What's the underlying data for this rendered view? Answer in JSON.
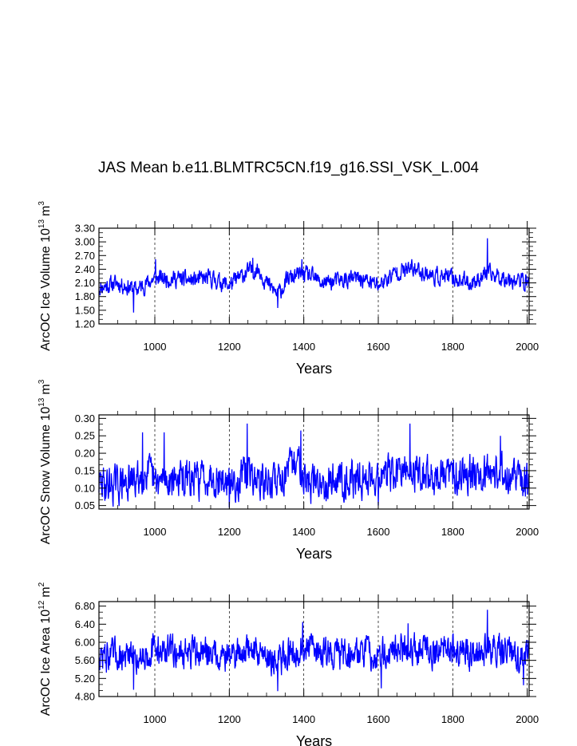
{
  "title": "JAS Mean b.e11.BLMTRC5CN.f19_g16.SSI_VSK_L.004",
  "chart_data": [
    {
      "type": "line",
      "name": "ice-volume",
      "ylabel": {
        "main": "ArcOC Ice Volume 10",
        "exp": "13",
        "unit": "m",
        "unit_exp": "3"
      },
      "xlabel": "Years",
      "xlim": [
        850,
        2005
      ],
      "ylim": [
        1.2,
        3.3
      ],
      "xticks": [
        1000,
        1200,
        1400,
        1600,
        1800,
        2000
      ],
      "yticks": [
        1.2,
        1.5,
        1.8,
        2.1,
        2.4,
        2.7,
        3.0,
        3.3
      ],
      "ytick_labels": [
        "1.20",
        "1.50",
        "1.80",
        "2.10",
        "2.40",
        "2.70",
        "3.00",
        "3.30"
      ],
      "series": [
        {
          "name": "ice volume",
          "color": "#0000ff",
          "base": [
            [
              850,
              2.0
            ],
            [
              900,
              2.1
            ],
            [
              950,
              1.95
            ],
            [
              1000,
              2.2
            ],
            [
              1050,
              2.2
            ],
            [
              1100,
              2.15
            ],
            [
              1150,
              2.2
            ],
            [
              1200,
              2.05
            ],
            [
              1250,
              2.35
            ],
            [
              1280,
              2.4
            ],
            [
              1300,
              2.1
            ],
            [
              1330,
              1.85
            ],
            [
              1360,
              2.2
            ],
            [
              1400,
              2.3
            ],
            [
              1450,
              2.1
            ],
            [
              1500,
              2.15
            ],
            [
              1550,
              2.2
            ],
            [
              1600,
              2.05
            ],
            [
              1650,
              2.35
            ],
            [
              1700,
              2.4
            ],
            [
              1750,
              2.25
            ],
            [
              1800,
              2.2
            ],
            [
              1850,
              2.1
            ],
            [
              1890,
              2.3
            ],
            [
              1950,
              2.2
            ],
            [
              2005,
              2.1
            ]
          ],
          "amp": 0.16,
          "seed": 11,
          "spikes": [
            [
              943,
              1.45
            ],
            [
              1330,
              1.55
            ],
            [
              1893,
              3.08
            ],
            [
              1002,
              2.62
            ],
            [
              1263,
              2.65
            ],
            [
              1395,
              2.62
            ],
            [
              1690,
              2.62
            ]
          ]
        }
      ]
    },
    {
      "type": "line",
      "name": "snow-volume",
      "ylabel": {
        "main": "ArcOC Snow Volume 10",
        "exp": "13",
        "unit": "m",
        "unit_exp": "3"
      },
      "xlabel": "Years",
      "xlim": [
        850,
        2005
      ],
      "ylim": [
        0.04,
        0.31
      ],
      "xticks": [
        1000,
        1200,
        1400,
        1600,
        1800,
        2000
      ],
      "yticks": [
        0.05,
        0.1,
        0.15,
        0.2,
        0.25,
        0.3
      ],
      "ytick_labels": [
        "0.05",
        "0.10",
        "0.15",
        "0.20",
        "0.25",
        "0.30"
      ],
      "series": [
        {
          "name": "snow volume",
          "color": "#0000ff",
          "base": [
            [
              850,
              0.11
            ],
            [
              900,
              0.11
            ],
            [
              950,
              0.12
            ],
            [
              980,
              0.15
            ],
            [
              1000,
              0.11
            ],
            [
              1050,
              0.13
            ],
            [
              1100,
              0.12
            ],
            [
              1150,
              0.14
            ],
            [
              1200,
              0.11
            ],
            [
              1250,
              0.14
            ],
            [
              1300,
              0.11
            ],
            [
              1350,
              0.14
            ],
            [
              1390,
              0.18
            ],
            [
              1410,
              0.11
            ],
            [
              1450,
              0.12
            ],
            [
              1500,
              0.13
            ],
            [
              1550,
              0.12
            ],
            [
              1600,
              0.14
            ],
            [
              1650,
              0.14
            ],
            [
              1700,
              0.15
            ],
            [
              1750,
              0.13
            ],
            [
              1800,
              0.14
            ],
            [
              1850,
              0.15
            ],
            [
              1900,
              0.15
            ],
            [
              1950,
              0.14
            ],
            [
              2005,
              0.11
            ]
          ],
          "amp": 0.045,
          "seed": 29,
          "spikes": [
            [
              967,
              0.26
            ],
            [
              1025,
              0.26
            ],
            [
              1248,
              0.285
            ],
            [
              1392,
              0.265
            ],
            [
              1685,
              0.285
            ],
            [
              1928,
              0.25
            ],
            [
              1200,
              0.045
            ],
            [
              1600,
              0.05
            ]
          ]
        }
      ]
    },
    {
      "type": "line",
      "name": "ice-area",
      "ylabel": {
        "main": "ArcOC Ice Area 10",
        "exp": "12",
        "unit": "m",
        "unit_exp": "2"
      },
      "xlabel": "Years",
      "xlim": [
        850,
        2005
      ],
      "ylim": [
        4.8,
        6.9
      ],
      "xticks": [
        1000,
        1200,
        1400,
        1600,
        1800,
        2000
      ],
      "yticks": [
        4.8,
        5.2,
        5.6,
        6.0,
        6.4,
        6.8
      ],
      "ytick_labels": [
        "4.80",
        "5.20",
        "5.60",
        "6.00",
        "6.40",
        "6.80"
      ],
      "series": [
        {
          "name": "ice area",
          "color": "#0000ff",
          "base": [
            [
              850,
              5.7
            ],
            [
              900,
              5.7
            ],
            [
              950,
              5.65
            ],
            [
              1000,
              5.85
            ],
            [
              1050,
              5.8
            ],
            [
              1100,
              5.75
            ],
            [
              1150,
              5.8
            ],
            [
              1200,
              5.7
            ],
            [
              1250,
              5.85
            ],
            [
              1300,
              5.75
            ],
            [
              1330,
              5.5
            ],
            [
              1360,
              5.8
            ],
            [
              1400,
              5.85
            ],
            [
              1450,
              5.8
            ],
            [
              1500,
              5.75
            ],
            [
              1550,
              5.8
            ],
            [
              1600,
              5.7
            ],
            [
              1650,
              5.85
            ],
            [
              1700,
              5.9
            ],
            [
              1750,
              5.8
            ],
            [
              1800,
              5.85
            ],
            [
              1850,
              5.75
            ],
            [
              1890,
              5.9
            ],
            [
              1950,
              5.75
            ],
            [
              2005,
              5.7
            ]
          ],
          "amp": 0.3,
          "seed": 47,
          "spikes": [
            [
              943,
              4.95
            ],
            [
              1330,
              4.92
            ],
            [
              1893,
              6.72
            ],
            [
              1397,
              6.45
            ],
            [
              1680,
              6.42
            ],
            [
              1608,
              4.98
            ],
            [
              1990,
              5.05
            ]
          ]
        }
      ]
    }
  ]
}
